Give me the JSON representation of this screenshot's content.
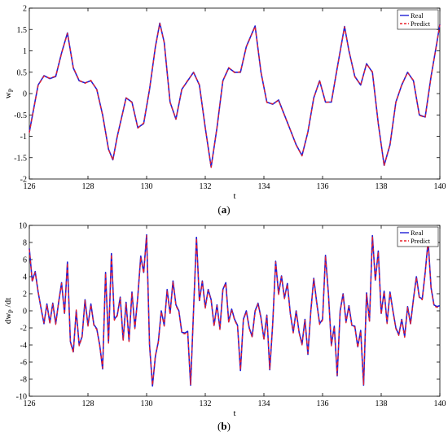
{
  "chart_data": [
    {
      "type": "line",
      "panel_label": "a",
      "xlabel": "t",
      "ylabel_main": "w",
      "ylabel_sub": "P",
      "ylabel_suffix": "",
      "xlim": [
        126,
        140
      ],
      "ylim": [
        -2,
        2
      ],
      "xticks": [
        126,
        128,
        130,
        132,
        134,
        136,
        138,
        140
      ],
      "yticks": [
        -2,
        -1.5,
        -1,
        -0.5,
        0,
        0.5,
        1,
        1.5,
        2
      ],
      "xtick_labels": [
        "126",
        "128",
        "130",
        "132",
        "134",
        "136",
        "138",
        "140"
      ],
      "ytick_labels": [
        "-2",
        "-1.5",
        "-1",
        "-0.5",
        "0",
        "0.5",
        "1",
        "1.5",
        "2"
      ],
      "legend_position": "top-right",
      "series": [
        {
          "name": "Real",
          "color": "#1f1fd6",
          "style": "solid"
        },
        {
          "name": "Predict",
          "color": "#e8202a",
          "style": "dashed"
        }
      ],
      "x": [
        126.0,
        126.3,
        126.5,
        126.7,
        126.9,
        127.1,
        127.3,
        127.5,
        127.7,
        127.9,
        128.1,
        128.3,
        128.5,
        128.7,
        128.85,
        129.0,
        129.3,
        129.5,
        129.7,
        129.9,
        130.1,
        130.3,
        130.45,
        130.6,
        130.8,
        131.0,
        131.2,
        131.4,
        131.6,
        131.8,
        132.0,
        132.2,
        132.4,
        132.6,
        132.8,
        133.0,
        133.2,
        133.4,
        133.7,
        133.9,
        134.1,
        134.3,
        134.5,
        134.7,
        134.9,
        135.1,
        135.3,
        135.5,
        135.7,
        135.9,
        136.1,
        136.3,
        136.5,
        136.75,
        136.9,
        137.1,
        137.3,
        137.5,
        137.7,
        137.9,
        138.1,
        138.3,
        138.5,
        138.7,
        138.9,
        139.1,
        139.3,
        139.5,
        139.7,
        139.9,
        140.0
      ],
      "y": [
        -0.9,
        0.2,
        0.42,
        0.35,
        0.4,
        0.95,
        1.42,
        0.6,
        0.3,
        0.25,
        0.3,
        0.1,
        -0.5,
        -1.3,
        -1.55,
        -1.0,
        -0.1,
        -0.2,
        -0.8,
        -0.7,
        0.1,
        1.1,
        1.65,
        1.2,
        -0.2,
        -0.6,
        0.1,
        0.3,
        0.5,
        0.2,
        -0.8,
        -1.72,
        -0.8,
        0.3,
        0.6,
        0.5,
        0.5,
        1.1,
        1.58,
        0.5,
        -0.2,
        -0.25,
        -0.15,
        -0.5,
        -0.85,
        -1.2,
        -1.45,
        -0.9,
        -0.1,
        0.3,
        -0.2,
        -0.2,
        0.6,
        1.57,
        1.0,
        0.4,
        0.2,
        0.7,
        0.5,
        -0.7,
        -1.68,
        -1.2,
        -0.2,
        0.2,
        0.5,
        0.3,
        -0.5,
        -0.55,
        0.4,
        1.2,
        1.62
      ],
      "y_predict": [
        -0.92,
        0.19,
        0.41,
        0.36,
        0.41,
        0.94,
        1.41,
        0.61,
        0.31,
        0.24,
        0.31,
        0.09,
        -0.51,
        -1.31,
        -1.56,
        -1.01,
        -0.1,
        -0.21,
        -0.81,
        -0.69,
        0.11,
        1.09,
        1.64,
        1.19,
        -0.21,
        -0.6,
        0.1,
        0.31,
        0.49,
        0.21,
        -0.81,
        -1.73,
        -0.79,
        0.3,
        0.61,
        0.49,
        0.51,
        1.09,
        1.57,
        0.51,
        -0.21,
        -0.24,
        -0.16,
        -0.51,
        -0.85,
        -1.21,
        -1.46,
        -0.89,
        -0.11,
        0.31,
        -0.21,
        -0.19,
        0.59,
        1.56,
        1.01,
        0.39,
        0.21,
        0.69,
        0.51,
        -0.71,
        -1.69,
        -1.19,
        -0.21,
        0.21,
        0.49,
        0.31,
        -0.51,
        -0.56,
        0.39,
        1.19,
        1.61
      ]
    },
    {
      "type": "line",
      "panel_label": "b",
      "xlabel": "t",
      "ylabel_main": "dw",
      "ylabel_sub": "P",
      "ylabel_suffix": "/dt",
      "xlim": [
        126,
        140
      ],
      "ylim": [
        -10,
        10
      ],
      "xticks": [
        126,
        128,
        130,
        132,
        134,
        136,
        138,
        140
      ],
      "yticks": [
        -10,
        -8,
        -6,
        -4,
        -2,
        0,
        2,
        4,
        6,
        8,
        10
      ],
      "xtick_labels": [
        "126",
        "128",
        "130",
        "132",
        "134",
        "136",
        "138",
        "140"
      ],
      "ytick_labels": [
        "-10",
        "-8",
        "-6",
        "-4",
        "-2",
        "0",
        "2",
        "4",
        "6",
        "8",
        "10"
      ],
      "legend_position": "top-right",
      "series": [
        {
          "name": "Real",
          "color": "#1f1fd6",
          "style": "solid"
        },
        {
          "name": "Predict",
          "color": "#e8202a",
          "style": "dashed"
        }
      ],
      "x": [
        126.0,
        126.1,
        126.2,
        126.3,
        126.4,
        126.5,
        126.6,
        126.7,
        126.8,
        126.9,
        127.0,
        127.1,
        127.2,
        127.3,
        127.4,
        127.5,
        127.6,
        127.7,
        127.8,
        127.9,
        128.0,
        128.1,
        128.2,
        128.3,
        128.4,
        128.5,
        128.6,
        128.7,
        128.8,
        128.9,
        129.0,
        129.1,
        129.2,
        129.3,
        129.4,
        129.5,
        129.6,
        129.7,
        129.8,
        129.9,
        130.0,
        130.1,
        130.2,
        130.3,
        130.4,
        130.5,
        130.6,
        130.7,
        130.8,
        130.9,
        131.0,
        131.1,
        131.2,
        131.3,
        131.4,
        131.5,
        131.6,
        131.7,
        131.8,
        131.9,
        132.0,
        132.1,
        132.2,
        132.3,
        132.4,
        132.5,
        132.6,
        132.7,
        132.8,
        132.9,
        133.0,
        133.1,
        133.2,
        133.3,
        133.4,
        133.5,
        133.6,
        133.7,
        133.8,
        133.9,
        134.0,
        134.1,
        134.2,
        134.3,
        134.4,
        134.5,
        134.6,
        134.7,
        134.8,
        134.9,
        135.0,
        135.1,
        135.2,
        135.3,
        135.4,
        135.5,
        135.6,
        135.7,
        135.8,
        135.9,
        136.0,
        136.1,
        136.2,
        136.3,
        136.4,
        136.5,
        136.6,
        136.7,
        136.8,
        136.9,
        137.0,
        137.1,
        137.2,
        137.3,
        137.4,
        137.5,
        137.6,
        137.7,
        137.8,
        137.9,
        138.0,
        138.1,
        138.2,
        138.3,
        138.4,
        138.5,
        138.6,
        138.7,
        138.8,
        138.9,
        139.0,
        139.1,
        139.2,
        139.3,
        139.4,
        139.5,
        139.6,
        139.7,
        139.8,
        139.9,
        140.0
      ],
      "y": [
        7.3,
        3.5,
        4.6,
        2.2,
        0.3,
        -1.5,
        0.8,
        -1.4,
        0.9,
        -1.5,
        1.0,
        3.3,
        -0.3,
        5.7,
        -3.6,
        -4.8,
        0.0,
        -4.0,
        -3.0,
        1.3,
        -1.7,
        0.8,
        -1.6,
        -2.1,
        -4.0,
        -6.8,
        4.5,
        -3.7,
        6.7,
        -1.0,
        -0.5,
        1.6,
        -3.4,
        1.0,
        -3.5,
        2.2,
        -2.0,
        1.7,
        6.4,
        4.5,
        8.9,
        -4.0,
        -8.8,
        -5.3,
        -3.6,
        0.0,
        -1.7,
        2.5,
        -0.3,
        3.5,
        0.7,
        0.0,
        -2.5,
        -2.6,
        -2.4,
        -8.7,
        0.0,
        8.6,
        1.2,
        3.5,
        0.4,
        2.5,
        1.3,
        -1.7,
        0.7,
        -2.1,
        2.5,
        3.3,
        -1.3,
        0.2,
        -1.0,
        -1.7,
        -7.0,
        -1.0,
        0.0,
        -2.0,
        -3.0,
        0.0,
        0.9,
        -0.8,
        -3.3,
        -0.5,
        -6.9,
        -1.5,
        5.8,
        2.0,
        4.1,
        1.5,
        3.2,
        -0.3,
        -2.5,
        0.0,
        -2.5,
        -3.9,
        -1.0,
        -5.1,
        0.0,
        3.8,
        1.0,
        -1.5,
        -1.0,
        6.5,
        2.0,
        -4.0,
        -1.8,
        -7.6,
        0.0,
        2.0,
        -1.3,
        0.6,
        -1.7,
        -1.8,
        -4.2,
        -2.3,
        -8.7,
        2.1,
        -1.2,
        8.8,
        3.6,
        7.0,
        -0.3,
        2.3,
        -1.4,
        2.2,
        0.0,
        -2.0,
        -2.8,
        -1.0,
        -3.0,
        0.5,
        -1.5,
        1.4,
        4.0,
        1.6,
        1.4,
        4.5,
        8.2,
        2.7,
        0.7,
        0.5,
        0.6
      ],
      "y_predict": [
        7.2,
        3.4,
        4.5,
        2.3,
        0.2,
        -1.4,
        0.7,
        -1.5,
        0.8,
        -1.6,
        1.1,
        3.2,
        -0.4,
        5.6,
        -3.7,
        -4.9,
        0.1,
        -4.1,
        -3.1,
        1.2,
        -1.8,
        0.7,
        -1.7,
        -2.2,
        -4.1,
        -6.7,
        4.4,
        -3.8,
        6.6,
        -1.1,
        -0.6,
        1.5,
        -3.5,
        0.9,
        -3.6,
        2.1,
        -2.1,
        1.6,
        6.3,
        4.4,
        8.8,
        -4.1,
        -8.7,
        -5.2,
        -3.7,
        -0.1,
        -1.8,
        2.4,
        -0.4,
        3.4,
        0.6,
        -0.1,
        -2.6,
        -2.7,
        -2.5,
        -8.6,
        -0.1,
        8.5,
        1.1,
        3.4,
        0.3,
        2.4,
        1.2,
        -1.8,
        0.6,
        -2.2,
        2.4,
        3.2,
        -1.4,
        0.1,
        -1.1,
        -1.8,
        -6.9,
        -1.1,
        -0.1,
        -2.1,
        -3.1,
        -0.1,
        0.8,
        -0.9,
        -3.4,
        -0.6,
        -6.8,
        -1.6,
        5.7,
        1.9,
        4.0,
        1.4,
        3.1,
        -0.4,
        -2.6,
        -0.1,
        -2.6,
        -4.0,
        -1.1,
        -5.0,
        -0.1,
        3.7,
        0.9,
        -1.6,
        -1.1,
        6.4,
        1.9,
        -4.1,
        -1.9,
        -7.5,
        -0.1,
        1.9,
        -1.4,
        0.5,
        -1.8,
        -1.9,
        -4.3,
        -2.4,
        -8.6,
        2.0,
        -1.3,
        8.7,
        3.5,
        6.9,
        -0.4,
        2.2,
        -1.5,
        2.1,
        -0.1,
        -2.1,
        -2.9,
        -1.1,
        -3.1,
        0.4,
        -1.6,
        1.3,
        3.9,
        1.5,
        1.3,
        4.4,
        8.1,
        2.6,
        0.6,
        0.4,
        0.5
      ]
    }
  ]
}
